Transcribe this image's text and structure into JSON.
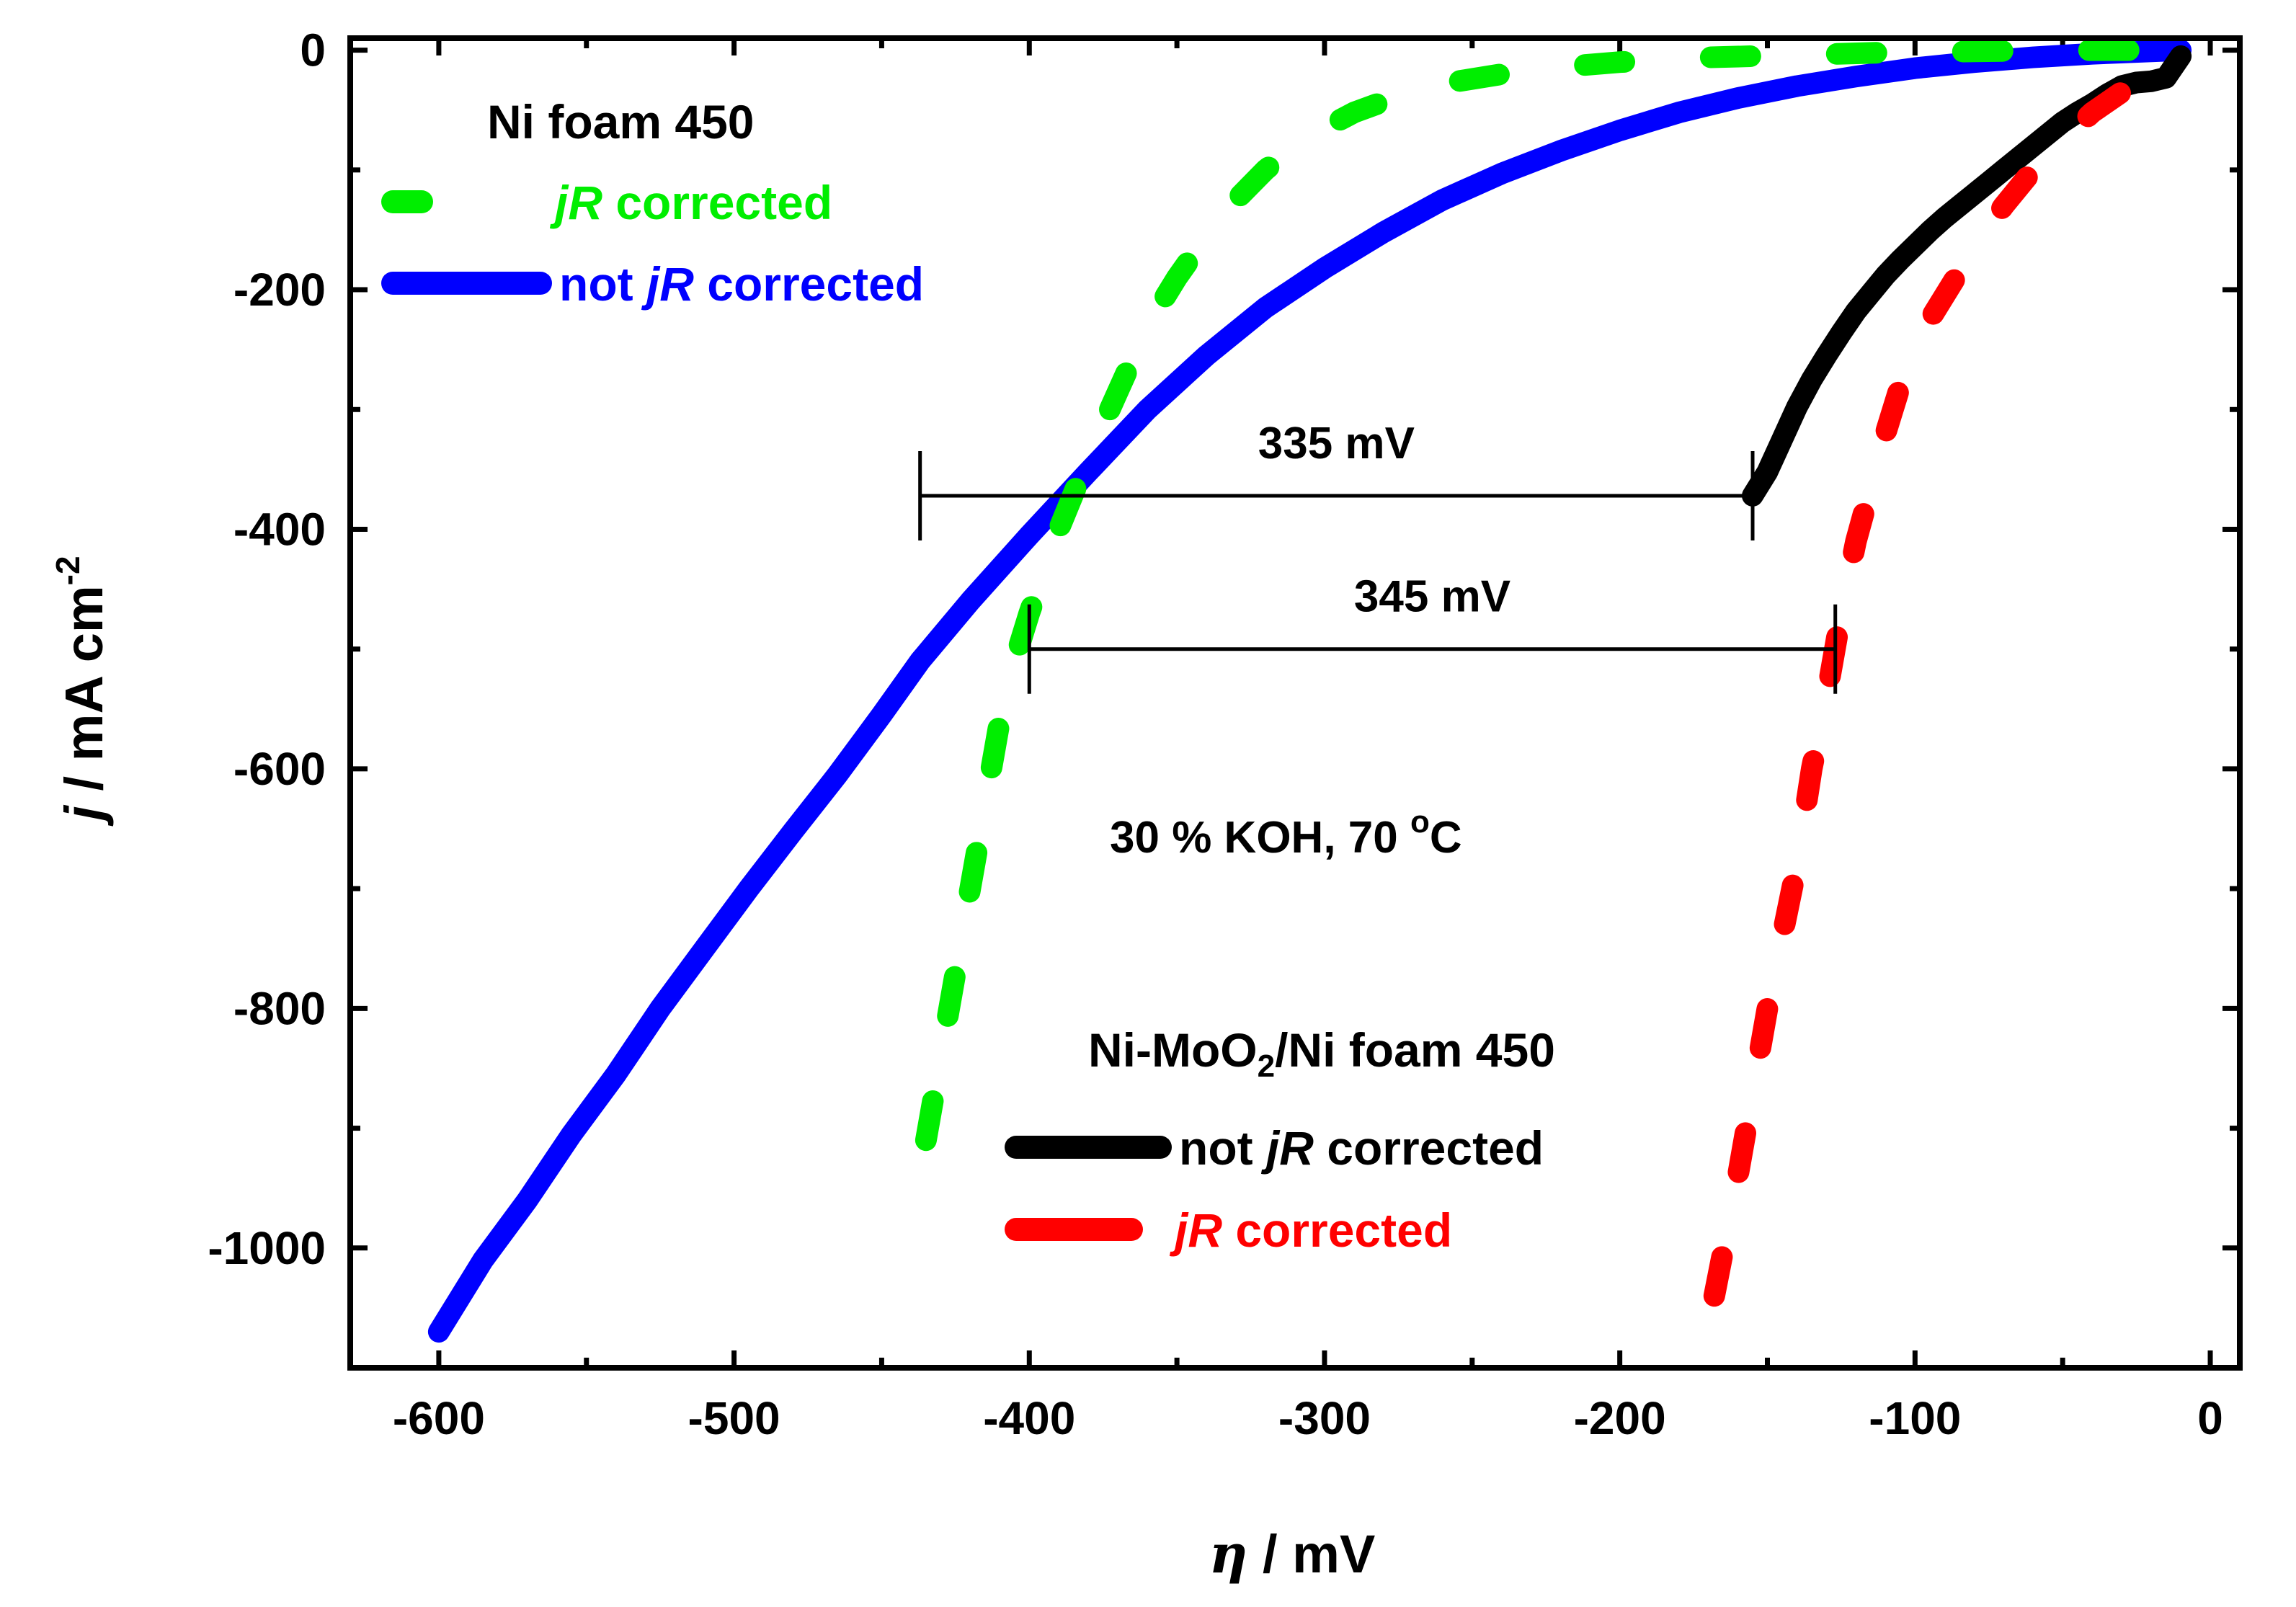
{
  "chart_data": {
    "type": "line",
    "xlabel_symbol": "η",
    "xlabel_unit": " / mV",
    "ylabel_symbol": "j",
    "ylabel_unit": " / mA cm",
    "ylabel_exp": "-2",
    "xlim": [
      -630,
      10
    ],
    "ylim": [
      -1100,
      10
    ],
    "xticks": [
      -600,
      -500,
      -400,
      -300,
      -200,
      -100,
      0
    ],
    "xtick_labels": [
      "-600",
      "-500",
      "-400",
      "-300",
      "-200",
      "-100",
      "0"
    ],
    "yticks": [
      0,
      -200,
      -400,
      -600,
      -800,
      -1000
    ],
    "ytick_labels": [
      "0",
      "-200",
      "-400",
      "-600",
      "-800",
      "-1000"
    ],
    "series": [
      {
        "name": "Ni foam 450 not jR corrected",
        "color": "#0000ff",
        "style": "solid",
        "x": [
          -600,
          -585,
          -570,
          -555,
          -540,
          -525,
          -510,
          -495,
          -480,
          -465,
          -450,
          -437,
          -420,
          -400,
          -380,
          -360,
          -340,
          -320,
          -300,
          -280,
          -260,
          -240,
          -220,
          -200,
          -180,
          -160,
          -140,
          -120,
          -100,
          -80,
          -60,
          -40,
          -20,
          -10
        ],
        "y": [
          -1070,
          -1010,
          -960,
          -905,
          -855,
          -800,
          -750,
          -700,
          -652,
          -605,
          -555,
          -510,
          -460,
          -405,
          -352,
          -300,
          -255,
          -215,
          -182,
          -152,
          -125,
          -103,
          -84,
          -67,
          -52,
          -40,
          -30,
          -22,
          -15,
          -10,
          -6,
          -3,
          -1,
          0
        ]
      },
      {
        "name": "Ni foam 450 jR corrected",
        "color": "#00ee00",
        "style": "dashed",
        "x": [
          -435,
          -430,
          -425,
          -420,
          -415,
          -410,
          -405,
          -400,
          -390,
          -380,
          -370,
          -360,
          -350,
          -340,
          -330,
          -320,
          -310,
          -300,
          -290,
          -280,
          -270,
          -260,
          -240,
          -220,
          -200,
          -170,
          -140,
          -110,
          -80,
          -50,
          -20,
          -10
        ],
        "y": [
          -910,
          -840,
          -770,
          -700,
          -630,
          -560,
          -510,
          -470,
          -400,
          -340,
          -285,
          -230,
          -190,
          -155,
          -125,
          -100,
          -80,
          -65,
          -52,
          -43,
          -35,
          -28,
          -20,
          -14,
          -10,
          -6,
          -4,
          -2,
          -1,
          0,
          0,
          0
        ]
      },
      {
        "name": "Ni-MoO2/Ni foam 450 not jR corrected",
        "color": "#000000",
        "style": "solid",
        "x": [
          -155,
          -150,
          -145,
          -140,
          -135,
          -130,
          -125,
          -120,
          -115,
          -110,
          -105,
          -100,
          -95,
          -90,
          -85,
          -80,
          -75,
          -70,
          -65,
          -60,
          -55,
          -50,
          -45,
          -40,
          -35,
          -30,
          -25,
          -20,
          -15,
          -10
        ],
        "y": [
          -372,
          -352,
          -325,
          -298,
          -275,
          -255,
          -236,
          -218,
          -203,
          -188,
          -175,
          -163,
          -151,
          -140,
          -130,
          -120,
          -110,
          -100,
          -90,
          -80,
          -70,
          -60,
          -52,
          -45,
          -37,
          -30,
          -27,
          -26,
          -23,
          -5
        ]
      },
      {
        "name": "Ni-MoO2/Ni foam 450 jR corrected",
        "color": "#ff0000",
        "style": "dashed",
        "x": [
          -168,
          -160,
          -150,
          -140,
          -135,
          -130,
          -125,
          -120,
          -115,
          -110,
          -105,
          -100,
          -95,
          -90,
          -85,
          -80,
          -70,
          -60,
          -50,
          -40,
          -30,
          -25,
          -20,
          -15
        ],
        "y": [
          -1040,
          -940,
          -800,
          -680,
          -600,
          -540,
          -470,
          -410,
          -365,
          -320,
          -280,
          -250,
          -225,
          -205,
          -185,
          -165,
          -130,
          -100,
          -75,
          -52,
          -35,
          -25,
          -20,
          -15
        ]
      }
    ],
    "legend_top": {
      "title": "Ni foam 450",
      "items": [
        {
          "series": 1,
          "prefix_italic": "jR",
          "suffix": " corrected",
          "color": "#00ee00"
        },
        {
          "series": 0,
          "plain": "not ",
          "prefix_italic": "jR",
          "suffix": " corrected",
          "color": "#0000ff"
        }
      ]
    },
    "legend_bottom": {
      "title_pre": "Ni-MoO",
      "title_sub": "2",
      "title_post": "/Ni foam 450",
      "items": [
        {
          "series": 2,
          "plain": "not ",
          "prefix_italic": "jR",
          "suffix": " corrected",
          "color": "#000000"
        },
        {
          "series": 3,
          "prefix_italic": "jR",
          "suffix": " corrected",
          "color": "#ff0000"
        }
      ]
    },
    "annotations": [
      {
        "text": "335 mV",
        "x1": -437,
        "x2": -155,
        "y": -372
      },
      {
        "text": "345 mV",
        "x1": -400,
        "x2": -127,
        "y": -500
      }
    ],
    "condition_main": "30 % KOH, 70 ",
    "condition_sup": "o",
    "condition_unit": "C"
  }
}
